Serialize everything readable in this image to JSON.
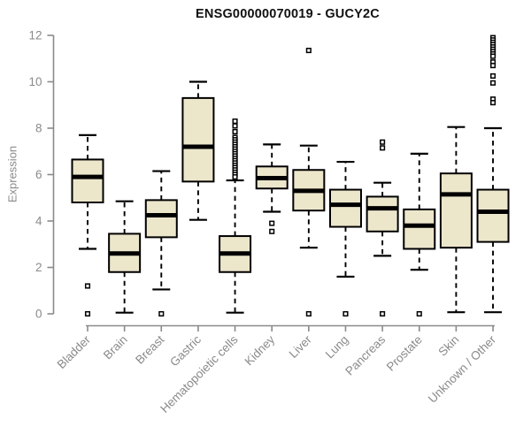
{
  "chart_data": {
    "type": "box",
    "title": "ENSG00000070019 - GUCY2C",
    "xlabel": "",
    "ylabel": "Expression",
    "ylim": [
      0,
      12
    ],
    "yticks": [
      0,
      2,
      4,
      6,
      8,
      10,
      12
    ],
    "grid": false,
    "legend": "none",
    "colors": {
      "box_fill": "#ECE6CB",
      "box_stroke": "#000000",
      "median": "#000000",
      "whisker": "#000000",
      "axis": "#8a8a8a",
      "tick_label": "#8a8a8a",
      "title": "#111111"
    },
    "categories": [
      "Bladder",
      "Brain",
      "Breast",
      "Gastric",
      "Hematopoietic cells",
      "Kidney",
      "Liver",
      "Lung",
      "Pancreas",
      "Prostate",
      "Skin",
      "Unknown / Other"
    ],
    "series": [
      {
        "name": "Bladder",
        "low": 2.8,
        "q1": 4.8,
        "median": 5.9,
        "q3": 6.65,
        "high": 7.7,
        "outliers": [
          1.2,
          0
        ]
      },
      {
        "name": "Brain",
        "low": 0.05,
        "q1": 1.8,
        "median": 2.6,
        "q3": 3.45,
        "high": 4.85,
        "outliers": []
      },
      {
        "name": "Breast",
        "low": 1.05,
        "q1": 3.3,
        "median": 4.25,
        "q3": 4.9,
        "high": 6.15,
        "outliers": [
          0
        ]
      },
      {
        "name": "Gastric",
        "low": 4.05,
        "q1": 5.7,
        "median": 7.2,
        "q3": 9.3,
        "high": 10.0,
        "outliers": []
      },
      {
        "name": "Hematopoietic cells",
        "low": 0.05,
        "q1": 1.8,
        "median": 2.6,
        "q3": 3.35,
        "high": 5.75,
        "outliers": [
          8.3,
          8.1,
          7.85,
          7.6,
          7.5,
          7.4,
          7.3,
          7.2,
          7.1,
          7.0,
          6.9,
          6.8,
          6.7,
          6.6,
          6.5,
          6.4,
          6.3,
          6.2,
          6.1,
          6.0,
          5.9
        ]
      },
      {
        "name": "Kidney",
        "low": 4.4,
        "q1": 5.4,
        "median": 5.85,
        "q3": 6.35,
        "high": 7.3,
        "outliers": [
          3.9,
          3.55
        ]
      },
      {
        "name": "Liver",
        "low": 2.85,
        "q1": 4.45,
        "median": 5.3,
        "q3": 6.2,
        "high": 7.25,
        "outliers": [
          11.35,
          0
        ]
      },
      {
        "name": "Lung",
        "low": 1.6,
        "q1": 3.75,
        "median": 4.7,
        "q3": 5.35,
        "high": 6.55,
        "outliers": [
          0
        ]
      },
      {
        "name": "Pancreas",
        "low": 2.5,
        "q1": 3.55,
        "median": 4.55,
        "q3": 5.05,
        "high": 5.65,
        "outliers": [
          7.4,
          7.15,
          0
        ]
      },
      {
        "name": "Prostate",
        "low": 1.9,
        "q1": 2.8,
        "median": 3.8,
        "q3": 4.5,
        "high": 6.9,
        "outliers": [
          0
        ]
      },
      {
        "name": "Skin",
        "low": 0.07,
        "q1": 2.85,
        "median": 5.15,
        "q3": 6.05,
        "high": 8.05,
        "outliers": []
      },
      {
        "name": "Unknown / Other",
        "low": 0.07,
        "q1": 3.1,
        "median": 4.4,
        "q3": 5.35,
        "high": 8.0,
        "outliers": [
          11.9,
          11.8,
          11.7,
          11.6,
          11.5,
          11.4,
          11.3,
          11.2,
          11.1,
          10.85,
          10.7,
          10.25,
          9.95,
          9.25,
          9.1
        ]
      }
    ]
  }
}
